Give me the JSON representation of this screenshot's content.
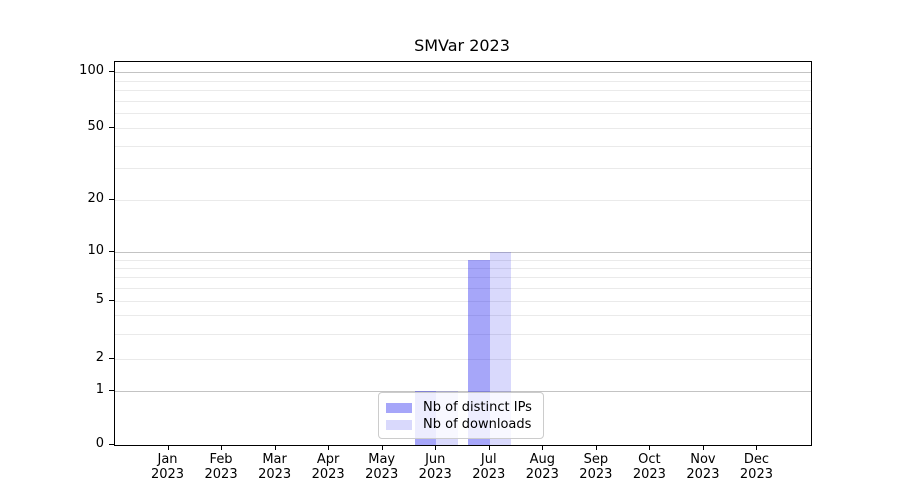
{
  "title": "SMVar 2023",
  "chart_data": {
    "type": "bar",
    "title": "SMVar 2023",
    "categories": [
      "Jan 2023",
      "Feb 2023",
      "Mar 2023",
      "Apr 2023",
      "May 2023",
      "Jun 2023",
      "Jul 2023",
      "Aug 2023",
      "Sep 2023",
      "Oct 2023",
      "Nov 2023",
      "Dec 2023"
    ],
    "x_months": [
      "Jan",
      "Feb",
      "Mar",
      "Apr",
      "May",
      "Jun",
      "Jul",
      "Aug",
      "Sep",
      "Oct",
      "Nov",
      "Dec"
    ],
    "x_year": "2023",
    "series": [
      {
        "name": "Nb of distinct IPs",
        "color": "rgba(20,20,238,0.38)",
        "values": [
          0,
          0,
          0,
          0,
          0,
          1,
          9,
          0,
          0,
          0,
          0,
          0
        ]
      },
      {
        "name": "Nb of downloads",
        "color": "rgba(20,20,238,0.16)",
        "values": [
          0,
          0,
          0,
          0,
          0,
          1,
          10,
          0,
          0,
          0,
          0,
          0
        ]
      }
    ],
    "xlabel": "",
    "ylabel": "",
    "yscale": "asinh-like (compressed log with 0)",
    "ylim": [
      0,
      110
    ],
    "y_tick_labels": [
      "100",
      "50",
      "20",
      "10",
      "5",
      "2",
      "1",
      "0"
    ],
    "y_tick_values": [
      100,
      50,
      20,
      10,
      5,
      2,
      1,
      0
    ],
    "y_minor_gridline_values": [
      2,
      3,
      4,
      5,
      6,
      7,
      8,
      9,
      20,
      30,
      40,
      50,
      60,
      70,
      80,
      90
    ],
    "y_major_gridline_values": [
      1,
      10,
      100
    ],
    "grid": true,
    "legend_position": "lower center",
    "grid_major_color": "#c3c3c3",
    "grid_minor_color": "#eaeaea"
  },
  "legend": {
    "items": [
      {
        "label": "Nb of distinct IPs"
      },
      {
        "label": "Nb of downloads"
      }
    ]
  }
}
